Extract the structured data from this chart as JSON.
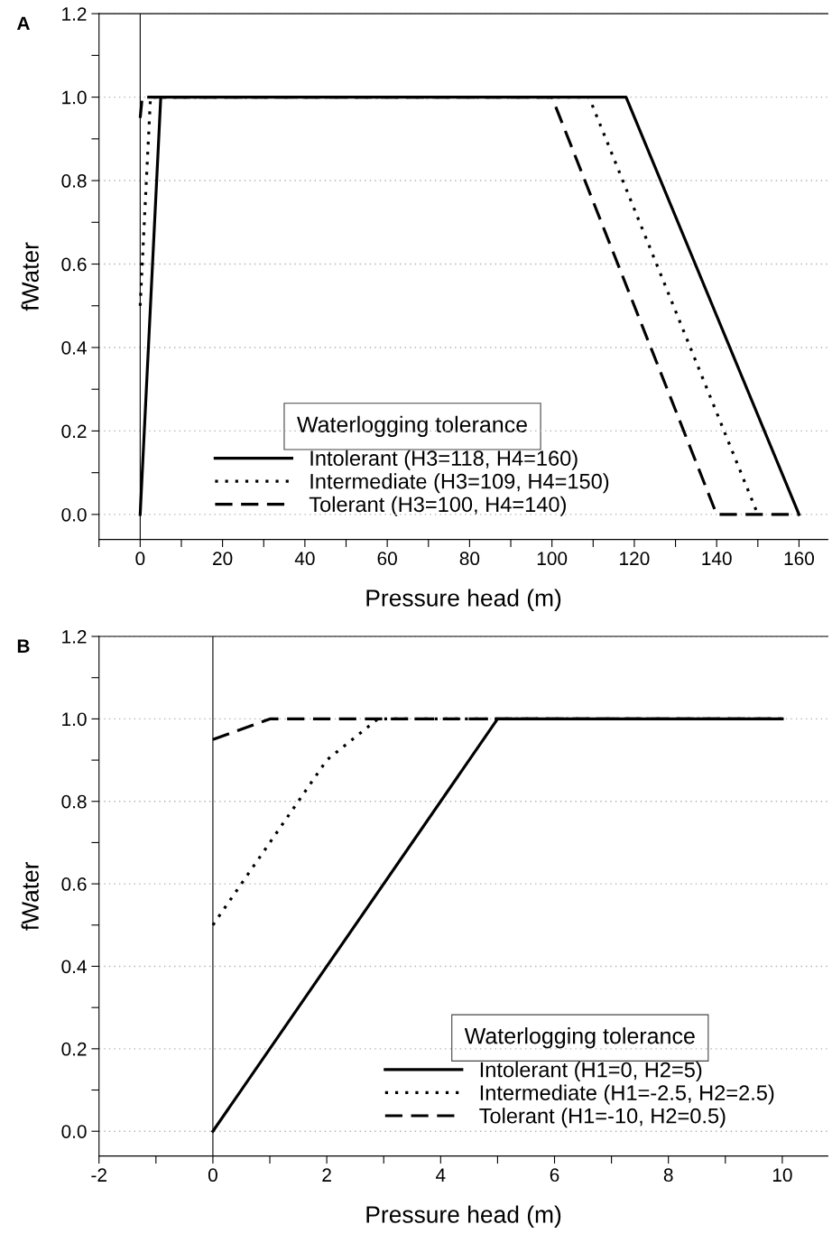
{
  "chart_data": [
    {
      "type": "line",
      "title": "A",
      "xlabel": "Pressure head (m)",
      "ylabel": "fWater",
      "legend_title": "Waterlogging tolerance",
      "legend": "bottom",
      "grid": "y",
      "marker": "none",
      "xlim": [
        -10,
        167
      ],
      "ylim": [
        -0.06,
        1.2
      ],
      "xticks": [
        {
          "value": -10,
          "label": null
        },
        {
          "value": 0,
          "label": "0"
        },
        {
          "value": 10,
          "label": null
        },
        {
          "value": 20,
          "label": "20"
        },
        {
          "value": 30,
          "label": null
        },
        {
          "value": 40,
          "label": "40"
        },
        {
          "value": 50,
          "label": null
        },
        {
          "value": 60,
          "label": "60"
        },
        {
          "value": 70,
          "label": null
        },
        {
          "value": 80,
          "label": "80"
        },
        {
          "value": 90,
          "label": null
        },
        {
          "value": 100,
          "label": "100"
        },
        {
          "value": 110,
          "label": null
        },
        {
          "value": 120,
          "label": "120"
        },
        {
          "value": 130,
          "label": null
        },
        {
          "value": 140,
          "label": "140"
        },
        {
          "value": 150,
          "label": null
        },
        {
          "value": 160,
          "label": "160"
        }
      ],
      "yticks": [
        {
          "value": 0,
          "label": "0.0"
        },
        {
          "value": 0.1,
          "label": null
        },
        {
          "value": 0.2,
          "label": "0.2"
        },
        {
          "value": 0.3,
          "label": null
        },
        {
          "value": 0.4,
          "label": "0.4"
        },
        {
          "value": 0.5,
          "label": null
        },
        {
          "value": 0.6,
          "label": "0.6"
        },
        {
          "value": 0.7,
          "label": null
        },
        {
          "value": 0.8,
          "label": "0.8"
        },
        {
          "value": 0.9,
          "label": null
        },
        {
          "value": 1.0,
          "label": "1.0"
        },
        {
          "value": 1.1,
          "label": null
        },
        {
          "value": 1.2,
          "label": "1.2"
        }
      ],
      "ref_lines": [
        {
          "axis": "x",
          "value": 0,
          "label": null,
          "color": "#000000",
          "line_style": "solid"
        }
      ],
      "series": [
        {
          "name": "Intolerant (H3=118, H4=160)",
          "color": "#000000",
          "line_style": "solid",
          "x": [
            0,
            5,
            118,
            160
          ],
          "values": [
            0,
            1,
            1,
            0
          ]
        },
        {
          "name": "Intermediate (H3=109, H4=150)",
          "color": "#000000",
          "line_style": "dotted",
          "x": [
            0,
            2.5,
            109,
            150
          ],
          "values": [
            0.5,
            1,
            1,
            0
          ]
        },
        {
          "name": "Tolerant (H3=100, H4=140)",
          "color": "#000000",
          "line_style": "dashed",
          "x": [
            0,
            0.5,
            100,
            140,
            160
          ],
          "values": [
            0.95,
            1,
            1,
            0,
            0
          ]
        }
      ]
    },
    {
      "type": "line",
      "title": "B",
      "xlabel": "Pressure head (m)",
      "ylabel": "fWater",
      "legend_title": "Waterlogging tolerance",
      "legend": "bottom right",
      "grid": "y",
      "marker": "none",
      "xlim": [
        -2,
        10.8
      ],
      "ylim": [
        -0.06,
        1.2
      ],
      "xticks": [
        {
          "value": -2,
          "label": "-2"
        },
        {
          "value": -1,
          "label": null
        },
        {
          "value": 0,
          "label": "0"
        },
        {
          "value": 1,
          "label": null
        },
        {
          "value": 2,
          "label": "2"
        },
        {
          "value": 3,
          "label": null
        },
        {
          "value": 4,
          "label": "4"
        },
        {
          "value": 5,
          "label": null
        },
        {
          "value": 6,
          "label": "6"
        },
        {
          "value": 7,
          "label": null
        },
        {
          "value": 8,
          "label": "8"
        },
        {
          "value": 9,
          "label": null
        },
        {
          "value": 10,
          "label": "10"
        }
      ],
      "yticks": [
        {
          "value": 0,
          "label": "0.0"
        },
        {
          "value": 0.1,
          "label": null
        },
        {
          "value": 0.2,
          "label": "0.2"
        },
        {
          "value": 0.3,
          "label": null
        },
        {
          "value": 0.4,
          "label": "0.4"
        },
        {
          "value": 0.5,
          "label": null
        },
        {
          "value": 0.6,
          "label": "0.6"
        },
        {
          "value": 0.7,
          "label": null
        },
        {
          "value": 0.8,
          "label": "0.8"
        },
        {
          "value": 0.9,
          "label": null
        },
        {
          "value": 1.0,
          "label": "1.0"
        },
        {
          "value": 1.1,
          "label": null
        },
        {
          "value": 1.2,
          "label": "1.2"
        }
      ],
      "ref_lines": [
        {
          "axis": "x",
          "value": 0,
          "label": null,
          "color": "#000000",
          "line_style": "solid"
        }
      ],
      "series": [
        {
          "name": "Intolerant (H1=0, H2=5)",
          "color": "#000000",
          "line_style": "solid",
          "x": [
            0,
            5,
            10
          ],
          "values": [
            0,
            1,
            1
          ]
        },
        {
          "name": "Intermediate (H1=-2.5, H2=2.5)",
          "color": "#000000",
          "line_style": "dotted",
          "x": [
            0,
            2,
            2.9,
            10
          ],
          "values": [
            0.5,
            0.9,
            1,
            1
          ]
        },
        {
          "name": "Tolerant (H1=-10, H2=0.5)",
          "color": "#000000",
          "line_style": "dashed",
          "x": [
            0,
            1,
            10
          ],
          "values": [
            0.95,
            1,
            1
          ]
        }
      ]
    }
  ]
}
